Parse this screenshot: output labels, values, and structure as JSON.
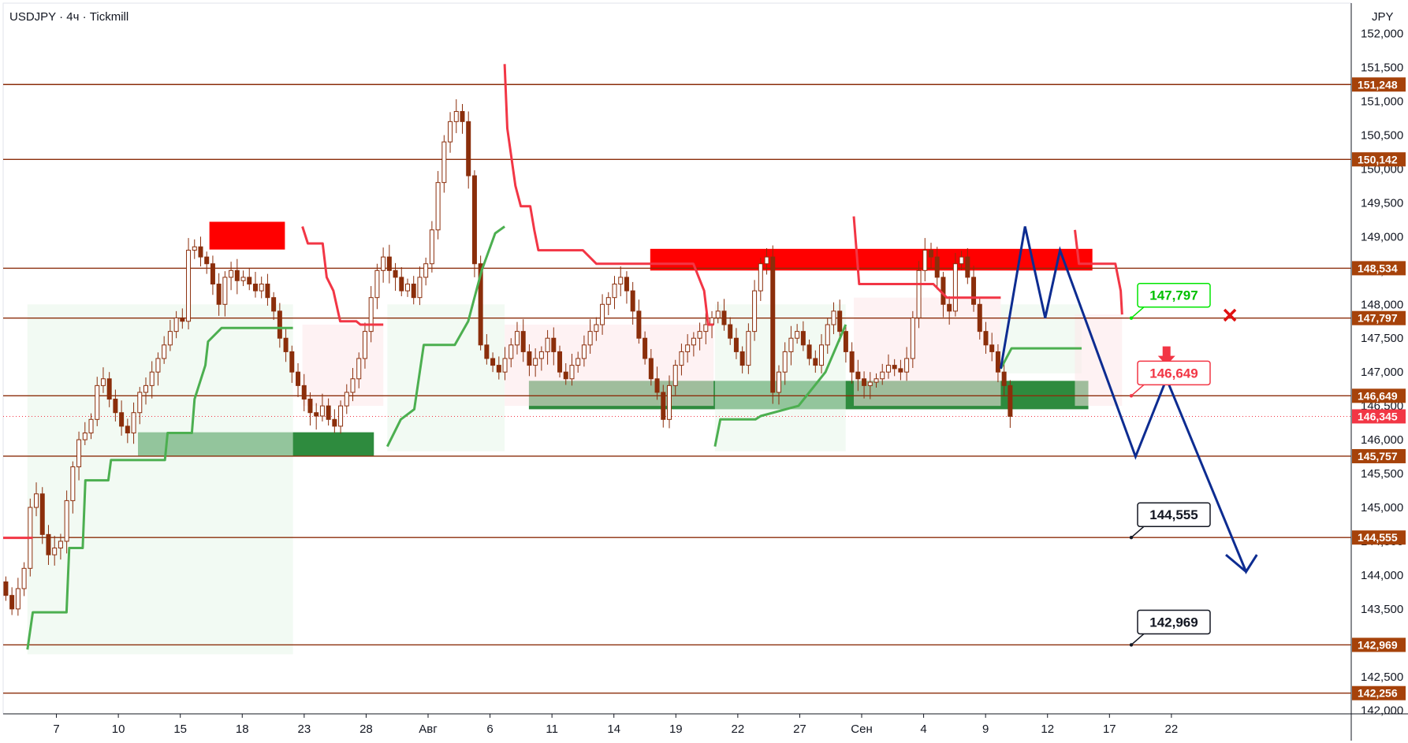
{
  "header": {
    "symbol": "USDJPY",
    "timeframe": "4ч",
    "broker": "Tickmill",
    "currency": "JPY"
  },
  "colors": {
    "level_line": "#8b2e0b",
    "level_tag": "#a6420a",
    "resistance_zone": "#ff0000",
    "support_zone": "#2e8b3e",
    "supertrend_up": "#4caf50",
    "supertrend_down": "#f23645",
    "forecast": "#0d2c91",
    "candle": "#8b2e0b",
    "price_tag": "#f23645"
  },
  "chart_data": {
    "type": "candlestick",
    "ylim": [
      141.95,
      152.45
    ],
    "y_ticks": [
      "142,000",
      "142,500",
      "143,000",
      "143,500",
      "144,000",
      "144,500",
      "145,000",
      "145,500",
      "146,000",
      "146,500",
      "147,000",
      "147,500",
      "148,000",
      "148,500",
      "149,000",
      "149,500",
      "150,000",
      "150,500",
      "151,000",
      "151,500",
      "152,000"
    ],
    "x_ticks": [
      "7",
      "10",
      "15",
      "18",
      "23",
      "28",
      "Авг",
      "6",
      "11",
      "14",
      "19",
      "22",
      "27",
      "Сен",
      "4",
      "9",
      "12",
      "17",
      "22"
    ],
    "levels": [
      {
        "value": 151.248,
        "label": "151,248"
      },
      {
        "value": 150.142,
        "label": "150,142"
      },
      {
        "value": 148.534,
        "label": "148,534"
      },
      {
        "value": 147.797,
        "label": "147,797"
      },
      {
        "value": 146.649,
        "label": "146,649"
      },
      {
        "value": 145.757,
        "label": "145,757"
      },
      {
        "value": 144.555,
        "label": "144,555"
      },
      {
        "value": 142.969,
        "label": "142,969"
      },
      {
        "value": 142.256,
        "label": "142,256"
      }
    ],
    "last_price": {
      "value": 146.345,
      "label": "146,345"
    },
    "callouts": [
      {
        "label": "147,797",
        "value": 147.797,
        "style": "green"
      },
      {
        "label": "146,649",
        "value": 146.649,
        "style": "red"
      },
      {
        "label": "144,555",
        "value": 144.555,
        "style": "black"
      },
      {
        "label": "142,969",
        "value": 142.969,
        "style": "black"
      }
    ],
    "zones": [
      {
        "type": "resistance",
        "x_from": 15.3,
        "x_to": 20.9,
        "y_from": 148.81,
        "y_to": 149.22
      },
      {
        "type": "support",
        "x_from": 10.0,
        "x_to": 27.5,
        "y_from": 145.76,
        "y_to": 146.11
      },
      {
        "type": "resistance",
        "x_from": 48.0,
        "x_to": 80.8,
        "y_from": 148.5,
        "y_to": 148.82
      },
      {
        "type": "support",
        "x_from": 39.0,
        "x_to": 80.5,
        "y_from": 146.45,
        "y_to": 146.87
      }
    ],
    "supertrend_up": [
      [
        [
          1.8,
          142.9
        ],
        [
          2.2,
          143.45
        ],
        [
          4.7,
          143.45
        ],
        [
          4.9,
          144.4
        ],
        [
          5.9,
          144.4
        ],
        [
          6.1,
          145.4
        ],
        [
          7.8,
          145.4
        ],
        [
          8.0,
          145.7
        ],
        [
          12.0,
          145.7
        ],
        [
          12.2,
          146.1
        ],
        [
          14.0,
          146.1
        ],
        [
          14.2,
          146.6
        ],
        [
          15.0,
          147.1
        ],
        [
          15.2,
          147.45
        ],
        [
          16.2,
          147.65
        ],
        [
          21.5,
          147.65
        ]
      ],
      [
        [
          28.5,
          145.9
        ],
        [
          29.5,
          146.3
        ],
        [
          30.5,
          146.45
        ],
        [
          31.2,
          147.4
        ],
        [
          33.5,
          147.4
        ],
        [
          34.5,
          147.75
        ],
        [
          35.5,
          148.5
        ],
        [
          36.5,
          149.05
        ],
        [
          37.2,
          149.15
        ]
      ],
      [
        [
          52.8,
          145.9
        ],
        [
          53.2,
          146.3
        ],
        [
          55.8,
          146.3
        ],
        [
          56.2,
          146.35
        ],
        [
          59.0,
          146.5
        ],
        [
          61.0,
          147.0
        ],
        [
          62.5,
          147.7
        ]
      ],
      [
        [
          74.0,
          147.05
        ],
        [
          74.8,
          147.35
        ],
        [
          80.0,
          147.35
        ]
      ]
    ],
    "supertrend_down": [
      [
        [
          0.0,
          144.55
        ],
        [
          2.2,
          144.55
        ]
      ],
      [
        [
          22.2,
          149.15
        ],
        [
          22.6,
          148.9
        ],
        [
          23.7,
          148.9
        ],
        [
          24.0,
          148.4
        ],
        [
          24.5,
          148.2
        ],
        [
          25.0,
          147.75
        ],
        [
          26.2,
          147.75
        ],
        [
          26.5,
          147.7
        ],
        [
          28.2,
          147.7
        ]
      ],
      [
        [
          37.2,
          151.55
        ],
        [
          37.4,
          150.6
        ],
        [
          38.0,
          149.75
        ],
        [
          38.4,
          149.45
        ],
        [
          39.1,
          149.45
        ],
        [
          39.4,
          149.1
        ],
        [
          39.7,
          148.8
        ],
        [
          43.0,
          148.8
        ],
        [
          44.0,
          148.6
        ],
        [
          51.2,
          148.6
        ],
        [
          52.0,
          148.2
        ],
        [
          52.3,
          147.7
        ],
        [
          52.7,
          147.7
        ]
      ],
      [
        [
          63.1,
          149.3
        ],
        [
          63.5,
          148.3
        ],
        [
          69.0,
          148.3
        ],
        [
          70.0,
          148.1
        ],
        [
          74.0,
          148.1
        ]
      ],
      [
        [
          79.5,
          149.1
        ],
        [
          79.8,
          148.6
        ],
        [
          82.5,
          148.6
        ],
        [
          82.9,
          148.2
        ],
        [
          83.0,
          147.85
        ]
      ]
    ],
    "forecast_path": [
      [
        74.0,
        147.05
      ],
      [
        75.8,
        149.15
      ],
      [
        77.3,
        147.8
      ],
      [
        78.4,
        148.8
      ],
      [
        84.0,
        145.75
      ],
      [
        86.3,
        146.9
      ],
      [
        92.2,
        144.05
      ],
      [
        93.0,
        144.3
      ]
    ],
    "forecast_arrow_head": [
      [
        90.7,
        144.3
      ],
      [
        92.2,
        144.05
      ]
    ],
    "red_cross": {
      "x": 91.0,
      "y": 147.84
    },
    "down_arrow": {
      "x": 86.3,
      "y": 147.1
    },
    "closes": [
      143.7,
      143.5,
      143.8,
      144.1,
      145.0,
      145.2,
      144.6,
      144.3,
      144.4,
      144.5,
      145.1,
      145.6,
      146.0,
      146.1,
      146.3,
      146.8,
      146.9,
      146.6,
      146.4,
      146.2,
      146.1,
      146.4,
      146.7,
      146.8,
      147.0,
      147.2,
      147.4,
      147.6,
      147.8,
      147.75,
      148.8,
      148.85,
      148.7,
      148.6,
      148.3,
      148.0,
      148.4,
      148.5,
      148.35,
      148.4,
      148.3,
      148.2,
      148.3,
      148.1,
      147.9,
      147.5,
      147.3,
      147.0,
      146.8,
      146.6,
      146.4,
      146.35,
      146.5,
      146.3,
      146.2,
      146.5,
      146.7,
      146.9,
      147.2,
      147.6,
      148.1,
      148.5,
      148.7,
      148.5,
      148.4,
      148.2,
      148.3,
      148.1,
      148.4,
      148.6,
      149.1,
      149.8,
      150.4,
      150.7,
      150.85,
      150.7,
      149.9,
      148.6,
      147.4,
      147.2,
      147.1,
      147.0,
      147.2,
      147.4,
      147.6,
      147.3,
      147.1,
      147.2,
      147.3,
      147.5,
      147.3,
      147.0,
      146.9,
      147.1,
      147.2,
      147.4,
      147.6,
      147.7,
      148.0,
      148.1,
      148.3,
      148.4,
      148.2,
      147.9,
      147.5,
      147.2,
      146.9,
      146.7,
      146.3,
      146.8,
      147.1,
      147.3,
      147.4,
      147.5,
      147.6,
      147.7,
      147.8,
      147.9,
      147.7,
      147.5,
      147.3,
      147.1,
      147.6,
      148.2,
      148.6,
      148.7,
      146.7,
      147.0,
      147.3,
      147.5,
      147.6,
      147.4,
      147.2,
      147.1,
      147.4,
      147.7,
      147.9,
      147.6,
      147.3,
      147.0,
      146.9,
      146.8,
      146.85,
      146.9,
      147.0,
      147.1,
      147.05,
      147.0,
      147.2,
      147.8,
      148.5,
      148.8,
      148.7,
      148.4,
      148.0,
      147.9,
      148.6,
      148.7,
      148.4,
      148.0,
      147.6,
      147.4,
      147.3,
      147.0,
      146.8,
      146.345
    ]
  }
}
